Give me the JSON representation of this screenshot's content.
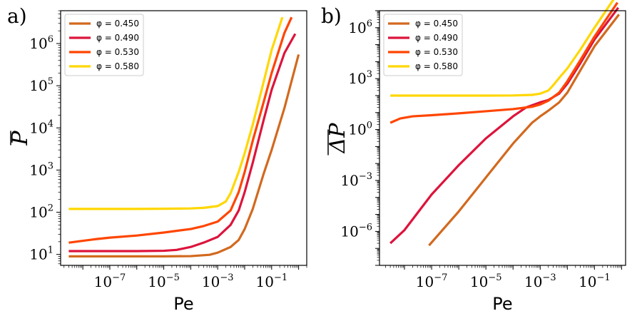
{
  "chart_data": [
    {
      "type": "line",
      "panel_label": "a)",
      "xlabel": "Pe",
      "ylabel": "P",
      "ylabel_overline": true,
      "xscale": "log",
      "yscale": "log",
      "xlim": [
        1.5e-09,
        2.0
      ],
      "ylim": [
        5.5,
        6000000.0
      ],
      "xticks": [
        {
          "value": 1e-07,
          "base": "10",
          "exp": "−7"
        },
        {
          "value": 1e-05,
          "base": "10",
          "exp": "−5"
        },
        {
          "value": 0.001,
          "base": "10",
          "exp": "−3"
        },
        {
          "value": 0.1,
          "base": "10",
          "exp": "−1"
        }
      ],
      "yticks": [
        {
          "value": 10,
          "base": "10",
          "exp": "1"
        },
        {
          "value": 100,
          "base": "10",
          "exp": "2"
        },
        {
          "value": 1000,
          "base": "10",
          "exp": "3"
        },
        {
          "value": 10000,
          "base": "10",
          "exp": "4"
        },
        {
          "value": 100000,
          "base": "10",
          "exp": "5"
        },
        {
          "value": 1000000,
          "base": "10",
          "exp": "6"
        }
      ],
      "legend_position": "top-left",
      "series": [
        {
          "name": "φ = 0.450",
          "color": "#d2691e",
          "x": [
            3e-09,
            1e-08,
            1e-07,
            1e-06,
            1e-05,
            0.0001,
            0.0005,
            0.001,
            0.003,
            0.006,
            0.01,
            0.02,
            0.05,
            0.1,
            0.3,
            1.0
          ],
          "y": [
            9,
            9,
            9,
            9,
            9,
            9.1,
            9.8,
            11,
            15,
            22,
            40,
            120,
            800,
            3000,
            30000,
            550000
          ]
        },
        {
          "name": "φ = 0.490",
          "color": "#dc143c",
          "x": [
            3e-09,
            1e-08,
            1e-07,
            1e-06,
            1e-05,
            3e-05,
            0.0001,
            0.0003,
            0.001,
            0.003,
            0.006,
            0.01,
            0.02,
            0.05,
            0.1,
            0.3,
            0.75
          ],
          "y": [
            12,
            12,
            12,
            12,
            12.2,
            12.8,
            15,
            19,
            26,
            50,
            110,
            300,
            1500,
            15000,
            80000,
            600000,
            1700000
          ]
        },
        {
          "name": "φ = 0.530",
          "color": "#ff4500",
          "x": [
            3e-09,
            1e-08,
            3e-08,
            1e-07,
            1e-06,
            1e-05,
            0.0001,
            0.0003,
            0.001,
            0.003,
            0.006,
            0.01,
            0.02,
            0.05,
            0.1,
            0.3,
            0.55
          ],
          "y": [
            19,
            21,
            23,
            25,
            28,
            33,
            40,
            47,
            60,
            110,
            300,
            900,
            5000,
            40000,
            200000,
            1800000,
            4200000
          ]
        },
        {
          "name": "φ = 0.580",
          "color": "#ffd700",
          "x": [
            3e-09,
            1e-08,
            1e-07,
            1e-06,
            1e-05,
            0.0001,
            0.0003,
            0.001,
            0.002,
            0.003,
            0.006,
            0.01,
            0.02,
            0.05,
            0.1,
            0.25
          ],
          "y": [
            120,
            120,
            120,
            120,
            121,
            123,
            127,
            140,
            180,
            280,
            900,
            2500,
            12000,
            120000,
            700000,
            4200000
          ]
        }
      ]
    },
    {
      "type": "line",
      "panel_label": "b)",
      "xlabel": "Pe",
      "ylabel": "ΔP",
      "ylabel_overline": true,
      "xscale": "log",
      "yscale": "log",
      "xlim": [
        1.2e-09,
        1.4
      ],
      "ylim": [
        1e-08,
        10000000.0
      ],
      "xticks": [
        {
          "value": 1e-07,
          "base": "10",
          "exp": "−7"
        },
        {
          "value": 1e-05,
          "base": "10",
          "exp": "−5"
        },
        {
          "value": 0.001,
          "base": "10",
          "exp": "−3"
        },
        {
          "value": 0.1,
          "base": "10",
          "exp": "−1"
        }
      ],
      "yticks": [
        {
          "value": 1e-06,
          "base": "10",
          "exp": "−6"
        },
        {
          "value": 0.001,
          "base": "10",
          "exp": "−3"
        },
        {
          "value": 1,
          "base": "10",
          "exp": "0"
        },
        {
          "value": 1000,
          "base": "10",
          "exp": "3"
        },
        {
          "value": 1000000,
          "base": "10",
          "exp": "6"
        }
      ],
      "legend_position": "top-left",
      "series": [
        {
          "name": "φ = 0.450",
          "color": "#d2691e",
          "x": [
            8e-08,
            1e-06,
            1e-05,
            0.0001,
            0.0005,
            0.001,
            0.002,
            0.005,
            0.01,
            0.03,
            0.1,
            0.8
          ],
          "y": [
            1.5e-07,
            1.5e-05,
            0.0015,
            0.15,
            2.5,
            6,
            13,
            40,
            150,
            3000,
            80000,
            6000000
          ]
        },
        {
          "name": "φ = 0.490",
          "color": "#dc143c",
          "x": [
            3e-09,
            1e-08,
            1e-07,
            1e-06,
            1e-05,
            0.0001,
            0.0003,
            0.001,
            0.002,
            0.005,
            0.01,
            0.03,
            0.1,
            0.75
          ],
          "y": [
            2e-07,
            1.2e-06,
            0.00015,
            0.008,
            0.3,
            6,
            20,
            40,
            55,
            130,
            500,
            8000,
            200000,
            15000000
          ]
        },
        {
          "name": "φ = 0.530",
          "color": "#ff4500",
          "x": [
            3e-09,
            7e-09,
            2e-08,
            1e-07,
            1e-06,
            1e-05,
            0.0001,
            0.0005,
            0.001,
            0.002,
            0.005,
            0.01,
            0.03,
            0.1,
            0.7
          ],
          "y": [
            2.5,
            4.5,
            6,
            7,
            9,
            12,
            16,
            22,
            30,
            50,
            150,
            700,
            12000,
            300000,
            30000000
          ]
        },
        {
          "name": "φ = 0.580",
          "color": "#ffd700",
          "x": [
            3e-09,
            1e-08,
            1e-07,
            1e-06,
            1e-05,
            0.0001,
            0.0005,
            0.001,
            0.002,
            0.003,
            0.005,
            0.01,
            0.03,
            0.1,
            0.7
          ],
          "y": [
            100,
            100,
            100,
            100,
            100,
            102,
            110,
            130,
            200,
            400,
            1100,
            4000,
            50000,
            1000000,
            100000000
          ]
        }
      ]
    }
  ]
}
